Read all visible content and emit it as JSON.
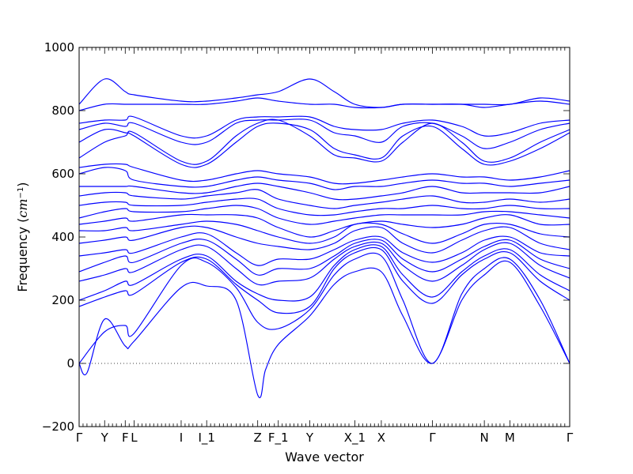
{
  "chart_data": {
    "type": "line",
    "title": "",
    "xlabel": "Wave vector",
    "ylabel": "Frequency (cm⁻¹)",
    "ylabel_main": "Frequency (",
    "ylabel_unit": "cm",
    "ylabel_exp": "−1",
    "ylabel_close": ")",
    "ylim": [
      -200,
      1000
    ],
    "yticks": [
      -200,
      0,
      200,
      400,
      600,
      800,
      1000
    ],
    "xlim": [
      0,
      5.0
    ],
    "grid": false,
    "legend": "none",
    "line_color": "#0000ff",
    "high_symmetry_points": [
      {
        "label": "Γ",
        "x": 0.0
      },
      {
        "label": "Y",
        "x": 0.26
      },
      {
        "label": "F",
        "x": 0.47
      },
      {
        "label": "L",
        "x": 0.56
      },
      {
        "label": "I",
        "x": 1.04
      },
      {
        "label": "I_1",
        "x": 1.3
      },
      {
        "label": "Z",
        "x": 1.82
      },
      {
        "label": "F_1",
        "x": 2.03
      },
      {
        "label": "Y",
        "x": 2.35
      },
      {
        "label": "X_1",
        "x": 2.81
      },
      {
        "label": "X",
        "x": 3.08
      },
      {
        "label": "Γ",
        "x": 3.6
      },
      {
        "label": "N",
        "x": 4.13
      },
      {
        "label": "M",
        "x": 4.39
      },
      {
        "label": "Γ",
        "x": 5.0
      }
    ],
    "minor_xticks": [
      0.04,
      0.08,
      0.13,
      0.17,
      0.21,
      0.3,
      0.34,
      0.38,
      0.43,
      0.51,
      0.6,
      0.64,
      0.68,
      0.72,
      0.76,
      0.8,
      0.84,
      0.88,
      0.92,
      0.96,
      1.0,
      1.08,
      1.12,
      1.16,
      1.2,
      1.25,
      1.34,
      1.38,
      1.43,
      1.47,
      1.51,
      1.55,
      1.6,
      1.64,
      1.68,
      1.72,
      1.77,
      1.86,
      1.9,
      1.94,
      1.99,
      2.07,
      2.11,
      2.15,
      2.19,
      2.23,
      2.27,
      2.31,
      2.39,
      2.43,
      2.47,
      2.51,
      2.55,
      2.59,
      2.63,
      2.67,
      2.71,
      2.75,
      2.85,
      2.89,
      2.93,
      2.97,
      3.01,
      3.05,
      3.12,
      3.16,
      3.2,
      3.24,
      3.28,
      3.32,
      3.36,
      3.4,
      3.44,
      3.48,
      3.52,
      3.56,
      3.64,
      3.68,
      3.72,
      3.76,
      3.8,
      3.84,
      3.88,
      3.92,
      3.97,
      4.01,
      4.05,
      4.09,
      4.17,
      4.21,
      4.25,
      4.29,
      4.33,
      4.43,
      4.47,
      4.51,
      4.55,
      4.59,
      4.63,
      4.67,
      4.71,
      4.75,
      4.79,
      4.83,
      4.87,
      4.91,
      4.95
    ],
    "series": [
      {
        "x": [
          0,
          0.08,
          0.26,
          0.47,
          0.56,
          1.04,
          1.3,
          1.6,
          1.82,
          1.9,
          2.03,
          2.35,
          2.6,
          2.81,
          3.08,
          3.3,
          3.6,
          3.9,
          4.13,
          4.39,
          4.7,
          5.0
        ],
        "y": [
          0,
          -30,
          140,
          55,
          70,
          240,
          245,
          200,
          -100,
          -20,
          60,
          150,
          250,
          290,
          290,
          150,
          0,
          200,
          280,
          320,
          180,
          0
        ]
      },
      {
        "x": [
          0,
          0.26,
          0.47,
          0.56,
          1.04,
          1.3,
          1.6,
          1.82,
          2.03,
          2.35,
          2.6,
          2.81,
          3.08,
          3.3,
          3.6,
          3.9,
          4.13,
          4.39,
          4.7,
          5.0
        ],
        "y": [
          0,
          100,
          120,
          95,
          310,
          320,
          240,
          130,
          110,
          170,
          280,
          330,
          340,
          200,
          0,
          220,
          300,
          330,
          200,
          0
        ]
      },
      {
        "x": [
          0,
          0.26,
          0.47,
          0.56,
          1.04,
          1.3,
          1.6,
          1.82,
          2.03,
          2.35,
          2.6,
          2.81,
          3.08,
          3.3,
          3.6,
          3.9,
          4.13,
          4.39,
          4.7,
          5.0
        ],
        "y": [
          180,
          210,
          230,
          220,
          320,
          330,
          250,
          200,
          160,
          180,
          300,
          350,
          360,
          260,
          190,
          280,
          330,
          350,
          260,
          200
        ]
      },
      {
        "x": [
          0,
          0.26,
          0.47,
          0.56,
          1.04,
          1.3,
          1.6,
          1.82,
          2.03,
          2.35,
          2.6,
          2.81,
          3.08,
          3.3,
          3.6,
          3.9,
          4.13,
          4.39,
          4.7,
          5.0
        ],
        "y": [
          200,
          230,
          260,
          250,
          330,
          340,
          260,
          220,
          200,
          210,
          310,
          360,
          370,
          280,
          210,
          290,
          340,
          360,
          280,
          230
        ]
      },
      {
        "x": [
          0,
          0.26,
          0.47,
          0.56,
          1.04,
          1.3,
          1.6,
          1.82,
          2.03,
          2.35,
          2.6,
          2.81,
          3.08,
          3.3,
          3.6,
          3.9,
          4.13,
          4.39,
          4.7,
          5.0
        ],
        "y": [
          260,
          280,
          300,
          290,
          360,
          370,
          300,
          250,
          260,
          270,
          330,
          370,
          380,
          310,
          260,
          310,
          360,
          380,
          310,
          270
        ]
      },
      {
        "x": [
          0,
          0.26,
          0.47,
          0.56,
          1.04,
          1.3,
          1.6,
          1.82,
          2.03,
          2.35,
          2.6,
          2.81,
          3.08,
          3.3,
          3.6,
          3.9,
          4.13,
          4.39,
          4.7,
          5.0
        ],
        "y": [
          290,
          320,
          340,
          320,
          380,
          390,
          330,
          280,
          300,
          300,
          340,
          380,
          390,
          330,
          290,
          330,
          370,
          390,
          330,
          300
        ]
      },
      {
        "x": [
          0,
          0.26,
          0.47,
          0.56,
          1.04,
          1.3,
          1.6,
          1.82,
          2.03,
          2.35,
          2.6,
          2.81,
          3.08,
          3.3,
          3.6,
          3.9,
          4.13,
          4.39,
          4.7,
          5.0
        ],
        "y": [
          340,
          350,
          360,
          350,
          400,
          410,
          350,
          310,
          330,
          330,
          360,
          390,
          400,
          350,
          320,
          350,
          390,
          400,
          350,
          340
        ]
      },
      {
        "x": [
          0,
          0.26,
          0.47,
          0.56,
          1.04,
          1.3,
          1.6,
          1.82,
          2.03,
          2.35,
          2.6,
          2.81,
          3.08,
          3.3,
          3.6,
          3.9,
          4.13,
          4.39,
          4.7,
          5.0
        ],
        "y": [
          380,
          390,
          400,
          390,
          430,
          430,
          400,
          380,
          370,
          360,
          380,
          420,
          430,
          380,
          350,
          390,
          420,
          430,
          380,
          360
        ]
      },
      {
        "x": [
          0,
          0.26,
          0.47,
          0.56,
          1.04,
          1.3,
          1.6,
          1.82,
          2.03,
          2.35,
          2.6,
          2.81,
          3.08,
          3.3,
          3.6,
          3.9,
          4.13,
          4.39,
          4.7,
          5.0
        ],
        "y": [
          420,
          420,
          430,
          420,
          440,
          450,
          440,
          420,
          400,
          380,
          400,
          440,
          440,
          410,
          380,
          410,
          440,
          440,
          410,
          400
        ]
      },
      {
        "x": [
          0,
          0.26,
          0.47,
          0.56,
          1.04,
          1.3,
          1.6,
          1.82,
          2.03,
          2.35,
          2.6,
          2.81,
          3.08,
          3.3,
          3.6,
          3.9,
          4.13,
          4.39,
          4.7,
          5.0
        ],
        "y": [
          440,
          450,
          460,
          450,
          470,
          470,
          470,
          460,
          430,
          400,
          420,
          440,
          450,
          440,
          430,
          440,
          460,
          470,
          440,
          440
        ]
      },
      {
        "x": [
          0,
          0.26,
          0.47,
          0.56,
          1.04,
          1.3,
          1.6,
          1.82,
          2.03,
          2.35,
          2.6,
          2.81,
          3.08,
          3.3,
          3.6,
          3.9,
          4.13,
          4.39,
          4.7,
          5.0
        ],
        "y": [
          460,
          480,
          490,
          480,
          480,
          490,
          500,
          490,
          460,
          440,
          450,
          460,
          470,
          470,
          470,
          470,
          480,
          480,
          470,
          460
        ]
      },
      {
        "x": [
          0,
          0.26,
          0.47,
          0.56,
          1.04,
          1.3,
          1.6,
          1.82,
          2.03,
          2.35,
          2.6,
          2.81,
          3.08,
          3.3,
          3.6,
          3.9,
          4.13,
          4.39,
          4.7,
          5.0
        ],
        "y": [
          500,
          510,
          510,
          500,
          500,
          510,
          520,
          520,
          490,
          470,
          470,
          480,
          490,
          490,
          500,
          490,
          490,
          500,
          490,
          490
        ]
      },
      {
        "x": [
          0,
          0.26,
          0.47,
          0.56,
          1.04,
          1.3,
          1.6,
          1.82,
          2.03,
          2.35,
          2.6,
          2.81,
          3.08,
          3.3,
          3.6,
          3.9,
          4.13,
          4.39,
          4.7,
          5.0
        ],
        "y": [
          530,
          540,
          540,
          530,
          520,
          530,
          540,
          550,
          520,
          500,
          490,
          500,
          510,
          520,
          530,
          510,
          510,
          520,
          510,
          520
        ]
      },
      {
        "x": [
          0,
          0.26,
          0.47,
          0.56,
          1.04,
          1.3,
          1.6,
          1.82,
          2.03,
          2.35,
          2.6,
          2.81,
          3.08,
          3.3,
          3.6,
          3.9,
          4.13,
          4.39,
          4.7,
          5.0
        ],
        "y": [
          560,
          560,
          560,
          560,
          540,
          540,
          560,
          570,
          560,
          540,
          520,
          520,
          530,
          540,
          560,
          540,
          540,
          540,
          540,
          560
        ]
      },
      {
        "x": [
          0,
          0.26,
          0.47,
          0.56,
          1.04,
          1.3,
          1.6,
          1.82,
          2.03,
          2.35,
          2.6,
          2.81,
          3.08,
          3.3,
          3.6,
          3.9,
          4.13,
          4.39,
          4.7,
          5.0
        ],
        "y": [
          600,
          620,
          610,
          580,
          560,
          560,
          580,
          590,
          580,
          570,
          550,
          560,
          560,
          570,
          580,
          570,
          570,
          560,
          570,
          580
        ]
      },
      {
        "x": [
          0,
          0.26,
          0.47,
          0.56,
          1.04,
          1.3,
          1.6,
          1.82,
          2.03,
          2.35,
          2.6,
          2.81,
          3.08,
          3.3,
          3.6,
          3.9,
          4.13,
          4.39,
          4.7,
          5.0
        ],
        "y": [
          620,
          630,
          630,
          620,
          580,
          580,
          600,
          610,
          600,
          590,
          570,
          570,
          580,
          590,
          600,
          590,
          590,
          580,
          590,
          610
        ]
      },
      {
        "x": [
          0,
          0.26,
          0.47,
          0.56,
          1.04,
          1.3,
          1.6,
          1.82,
          2.03,
          2.35,
          2.6,
          2.81,
          3.08,
          3.3,
          3.6,
          3.9,
          4.13,
          4.39,
          4.7,
          5.0
        ],
        "y": [
          650,
          700,
          720,
          730,
          640,
          640,
          720,
          760,
          770,
          720,
          660,
          650,
          640,
          700,
          760,
          700,
          640,
          650,
          700,
          740
        ]
      },
      {
        "x": [
          0,
          0.26,
          0.47,
          0.56,
          1.04,
          1.3,
          1.6,
          1.82,
          2.03,
          2.35,
          2.6,
          2.81,
          3.08,
          3.3,
          3.6,
          3.9,
          4.13,
          4.39,
          4.7,
          5.0
        ],
        "y": [
          700,
          740,
          730,
          720,
          630,
          630,
          700,
          750,
          760,
          740,
          680,
          660,
          650,
          720,
          750,
          680,
          630,
          640,
          680,
          730
        ]
      },
      {
        "x": [
          0,
          0.26,
          0.47,
          0.56,
          1.04,
          1.3,
          1.6,
          1.82,
          2.03,
          2.35,
          2.6,
          2.81,
          3.08,
          3.3,
          3.6,
          3.9,
          4.13,
          4.39,
          4.7,
          5.0
        ],
        "y": [
          740,
          760,
          750,
          760,
          700,
          700,
          760,
          770,
          770,
          770,
          730,
          720,
          700,
          750,
          760,
          720,
          680,
          700,
          740,
          760
        ]
      },
      {
        "x": [
          0,
          0.26,
          0.47,
          0.56,
          1.04,
          1.3,
          1.6,
          1.82,
          2.03,
          2.35,
          2.6,
          2.81,
          3.08,
          3.3,
          3.6,
          3.9,
          4.13,
          4.39,
          4.7,
          5.0
        ],
        "y": [
          760,
          770,
          770,
          780,
          720,
          720,
          770,
          780,
          780,
          780,
          750,
          740,
          740,
          760,
          770,
          750,
          720,
          730,
          760,
          770
        ]
      },
      {
        "x": [
          0,
          0.26,
          0.47,
          0.56,
          1.04,
          1.3,
          1.6,
          1.82,
          2.03,
          2.35,
          2.6,
          2.81,
          3.08,
          3.3,
          3.6,
          3.9,
          4.13,
          4.39,
          4.7,
          5.0
        ],
        "y": [
          800,
          820,
          820,
          820,
          820,
          820,
          830,
          840,
          830,
          820,
          820,
          810,
          810,
          820,
          820,
          820,
          810,
          820,
          830,
          820
        ]
      },
      {
        "x": [
          0,
          0.26,
          0.47,
          0.56,
          1.04,
          1.3,
          1.6,
          1.82,
          2.03,
          2.35,
          2.6,
          2.81,
          3.08,
          3.3,
          3.6,
          3.9,
          4.13,
          4.39,
          4.7,
          5.0
        ],
        "y": [
          820,
          900,
          860,
          850,
          830,
          830,
          840,
          850,
          860,
          900,
          860,
          820,
          810,
          820,
          820,
          820,
          820,
          820,
          840,
          830
        ]
      }
    ]
  }
}
